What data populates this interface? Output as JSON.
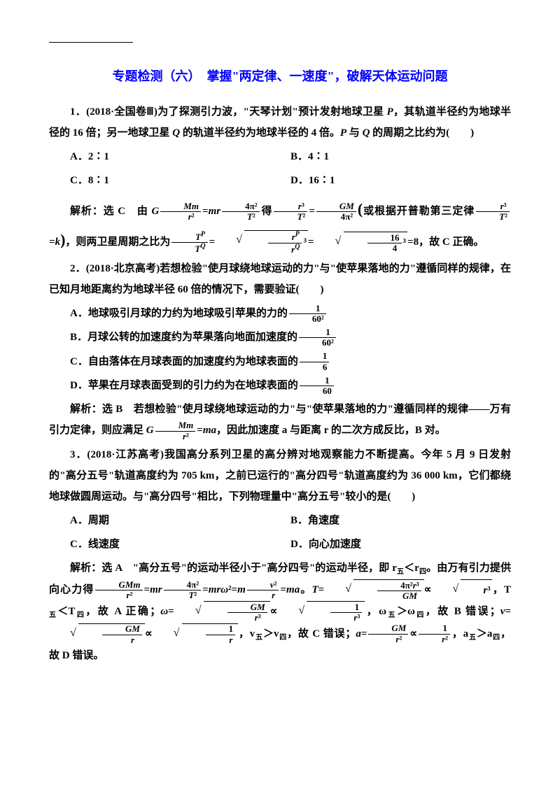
{
  "title": "专题检测（六）　掌握\"两定律、一速度\"，破解天体运动问题",
  "q1": {
    "num": "1．(2018·全国卷Ⅲ)为了探测引力波，\"天琴计划\"预计发射地球卫星 ",
    "sat": "P",
    "text2": "，其轨道半径约为地球半径的 16 倍；另一地球卫星 ",
    "sat2": "Q",
    "text3": " 的轨道半径约为地球半径的 4 倍。",
    "text4": " 与 ",
    "text5": " 的周期之比约为(　　)",
    "optA": "A．2∶1",
    "optB": "B．4∶1",
    "optC": "C．8∶1",
    "optD": "D．16∶1",
    "ans_label": "解析：选 C　由 ",
    "ans_mid": "或根据开普勒第三定律",
    "ans_end": "，则两卫星周期之比为",
    "ans_result": "=8，故 C 正确。"
  },
  "q2": {
    "text": "2．(2018·北京高考)若想检验\"使月球绕地球运动的力\"与\"使苹果落地的力\"遵循同样的规律，在已知月地距离约为地球半径 60 倍的情况下，需要验证(　　)",
    "optA": "A．地球吸引月球的力约为地球吸引苹果的力的",
    "optB": "B．月球公转的加速度约为苹果落向地面加速度的",
    "optC": "C．自由落体在月球表面的加速度约为地球表面的",
    "optD": "D．苹果在月球表面受到的引力约为在地球表面的",
    "fracA_num": "1",
    "fracA_den": "60²",
    "fracB_num": "1",
    "fracB_den": "60²",
    "fracC_num": "1",
    "fracC_den": "6",
    "fracD_num": "1",
    "fracD_den": "60",
    "ans": "解析：选 B　若想检验\"使月球绕地球运动的力\"与\"使苹果落地的力\"遵循同样的规律——万有引力定律，则应满足 ",
    "ans2": "，因此加速度 a 与距离 r 的二次方成反比，B 对。"
  },
  "q3": {
    "text": "3．(2018·江苏高考)我国高分系列卫星的高分辨对地观察能力不断提高。今年 5 月 9 日发射的\"高分五号\"轨道高度约为 705 km，之前已运行的\"高分四号\"轨道高度约为 36 000 km，它们都绕地球做圆周运动。与\"高分四号\"相比，下列物理量中\"高分五号\"较小的是(　　)",
    "optA": "A．周期",
    "optB": "B．角速度",
    "optC": "C．线速度",
    "optD": "D．向心加速度",
    "ans1": "解析：选 A　\"高分五号\"的运动半径小于\"高分四号\"的运动半径，即 r",
    "ans1b": "＜r",
    "ans1c": "。由万有引力提供向心力得",
    "ans2": "，T",
    "ans2b": "＜T",
    "ans2c": "，故 A 正确；",
    "ans3": "，ω",
    "ans3b": "＞ω",
    "ans3c": "，故 B 错误；",
    "ans4": "，v",
    "ans4b": "＞v",
    "ans4c": "，故 C 错误；",
    "ans5": "，a",
    "ans5b": "＞a",
    "ans5c": "，故 D 错误。",
    "sub5": "五",
    "sub4": "四"
  },
  "colors": {
    "title": "#0000ff",
    "text": "#000000",
    "background": "#ffffff"
  },
  "typography": {
    "title_fontsize": 18,
    "body_fontsize": 15,
    "line_height": 2.0,
    "font_family": "SimSun"
  }
}
